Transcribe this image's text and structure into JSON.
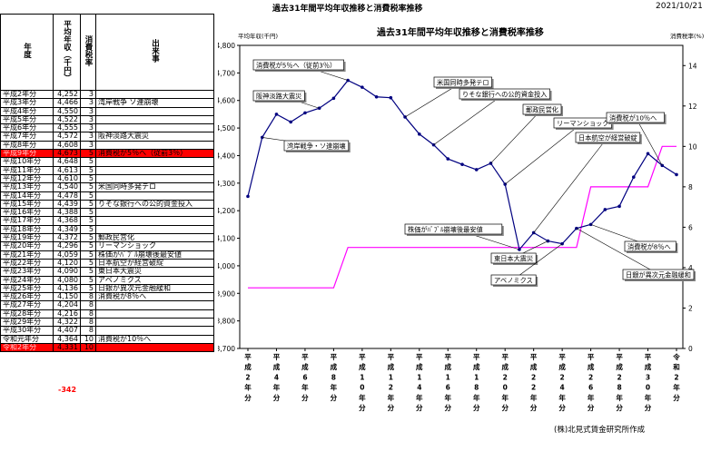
{
  "header": {
    "title": "過去31年間平均年収推移と消費税率推移",
    "date": "2021/10/21"
  },
  "table": {
    "columns": [
      "年度",
      "平均年収（千円）",
      "消費税率",
      "出来事"
    ],
    "rows": [
      {
        "year": "平成2年分",
        "income": "4,252",
        "tax": "3",
        "event": ""
      },
      {
        "year": "平成3年分",
        "income": "4,466",
        "tax": "3",
        "event": "湾岸戦争 ソ連崩壊"
      },
      {
        "year": "平成4年分",
        "income": "4,550",
        "tax": "3",
        "event": ""
      },
      {
        "year": "平成5年分",
        "income": "4,522",
        "tax": "3",
        "event": ""
      },
      {
        "year": "平成6年分",
        "income": "4,555",
        "tax": "3",
        "event": ""
      },
      {
        "year": "平成7年分",
        "income": "4,572",
        "tax": "3",
        "event": "阪神淡路大震災"
      },
      {
        "year": "平成8年分",
        "income": "4,608",
        "tax": "3",
        "event": ""
      },
      {
        "year": "平成9年分",
        "income": "4,673",
        "tax": "5",
        "event": "消費税が5％へ（従前3％）",
        "highlight": true
      },
      {
        "year": "平成10年分",
        "income": "4,648",
        "tax": "5",
        "event": ""
      },
      {
        "year": "平成11年分",
        "income": "4,613",
        "tax": "5",
        "event": ""
      },
      {
        "year": "平成12年分",
        "income": "4,610",
        "tax": "5",
        "event": ""
      },
      {
        "year": "平成13年分",
        "income": "4,540",
        "tax": "5",
        "event": "米国同時多発テロ"
      },
      {
        "year": "平成14年分",
        "income": "4,478",
        "tax": "5",
        "event": ""
      },
      {
        "year": "平成15年分",
        "income": "4,439",
        "tax": "5",
        "event": "りそな銀行への公的資金投入"
      },
      {
        "year": "平成16年分",
        "income": "4,388",
        "tax": "5",
        "event": ""
      },
      {
        "year": "平成17年分",
        "income": "4,368",
        "tax": "5",
        "event": ""
      },
      {
        "year": "平成18年分",
        "income": "4,349",
        "tax": "5",
        "event": ""
      },
      {
        "year": "平成19年分",
        "income": "4,372",
        "tax": "5",
        "event": "郵政民営化"
      },
      {
        "year": "平成20年分",
        "income": "4,296",
        "tax": "5",
        "event": "リーマンショック"
      },
      {
        "year": "平成21年分",
        "income": "4,059",
        "tax": "5",
        "event": "株価がﾊﾞﾌﾞﾙ崩壊後最安値"
      },
      {
        "year": "平成22年分",
        "income": "4,120",
        "tax": "5",
        "event": "日本航空が経営破綻"
      },
      {
        "year": "平成23年分",
        "income": "4,090",
        "tax": "5",
        "event": "東日本大震災"
      },
      {
        "year": "平成24年分",
        "income": "4,080",
        "tax": "5",
        "event": "アベノミクス"
      },
      {
        "year": "平成25年分",
        "income": "4,136",
        "tax": "5",
        "event": "日銀が異次元金融緩和"
      },
      {
        "year": "平成26年分",
        "income": "4,150",
        "tax": "8",
        "event": "消費税が8％へ"
      },
      {
        "year": "平成27年分",
        "income": "4,204",
        "tax": "8",
        "event": ""
      },
      {
        "year": "平成28年分",
        "income": "4,216",
        "tax": "8",
        "event": ""
      },
      {
        "year": "平成29年分",
        "income": "4,322",
        "tax": "8",
        "event": ""
      },
      {
        "year": "平成30年分",
        "income": "4,407",
        "tax": "8",
        "event": ""
      },
      {
        "year": "令和元年分",
        "income": "4,364",
        "tax": "10",
        "event": "消費税が10％へ"
      },
      {
        "year": "令和2年分",
        "income": "4,331",
        "tax": "10",
        "event": "",
        "highlight": true
      }
    ],
    "difference": "-342"
  },
  "credit": "(株)北見式賃金研究所作成",
  "colors": {
    "income_line": "#000080",
    "tax_line": "#ff00ff",
    "highlight": "#ff0000"
  },
  "chart_data": {
    "type": "line",
    "title": "過去31年間平均年収推移と消費税率推移",
    "ylabel": "平均年収(千円)",
    "y2label": "消費税率(%)",
    "ylim": [
      3700,
      4800
    ],
    "y2lim": [
      0,
      15
    ],
    "yticks": [
      "4,800",
      "4,700",
      "4,600",
      "4,500",
      "4,400",
      "4,300",
      "4,200",
      "4,100",
      "4,000",
      "3,900",
      "3,800",
      "3,700"
    ],
    "y2ticks": [
      "0",
      "2",
      "4",
      "6",
      "8",
      "10",
      "12",
      "14"
    ],
    "categories": [
      "平成2年分",
      "平成3年分",
      "平成4年分",
      "平成5年分",
      "平成6年分",
      "平成7年分",
      "平成8年分",
      "平成9年分",
      "平成10年分",
      "平成11年分",
      "平成12年分",
      "平成13年分",
      "平成14年分",
      "平成15年分",
      "平成16年分",
      "平成17年分",
      "平成18年分",
      "平成19年分",
      "平成20年分",
      "平成21年分",
      "平成22年分",
      "平成23年分",
      "平成24年分",
      "平成25年分",
      "平成26年分",
      "平成27年分",
      "平成28年分",
      "平成29年分",
      "平成30年分",
      "令和元年分",
      "令和2年分"
    ],
    "xtick_labels": [
      "平成2年分",
      "平成4年分",
      "平成6年分",
      "平成8年分",
      "平成10年分",
      "平成12年分",
      "平成14年分",
      "平成16年分",
      "平成18年分",
      "平成20年分",
      "平成22年分",
      "平成24年分",
      "平成26年分",
      "平成28年分",
      "平成30年分",
      "令和2年分"
    ],
    "series": [
      {
        "values": [
          4252,
          4466,
          4550,
          4522,
          4555,
          4572,
          4608,
          4673,
          4648,
          4613,
          4610,
          4540,
          4478,
          4439,
          4388,
          4368,
          4349,
          4372,
          4296,
          4059,
          4120,
          4090,
          4080,
          4136,
          4150,
          4204,
          4216,
          4322,
          4407,
          4364,
          4331
        ]
      },
      {
        "axis": "right",
        "values": [
          3,
          3,
          3,
          3,
          3,
          3,
          3,
          5,
          5,
          5,
          5,
          5,
          5,
          5,
          5,
          5,
          5,
          5,
          5,
          5,
          5,
          5,
          5,
          5,
          8,
          8,
          8,
          8,
          8,
          10,
          10
        ]
      }
    ],
    "annotations": [
      {
        "text": "消費税が5％へ（従前3％）"
      },
      {
        "text": "阪神淡路大震災"
      },
      {
        "text": "湾岸戦争・ソ連崩壊"
      },
      {
        "text": "米国同時多発テロ"
      },
      {
        "text": "りそな銀行への公的資金投入"
      },
      {
        "text": "郵政民営化"
      },
      {
        "text": "リーマンショック"
      },
      {
        "text": "日本航空が経営破綻"
      },
      {
        "text": "消費税が10％へ"
      },
      {
        "text": "株価がﾊﾞﾌﾞﾙ崩壊後最安値"
      },
      {
        "text": "東日本大震災"
      },
      {
        "text": "アベノミクス"
      },
      {
        "text": "消費税が8％へ"
      },
      {
        "text": "日銀が異次元金融緩和"
      }
    ]
  }
}
